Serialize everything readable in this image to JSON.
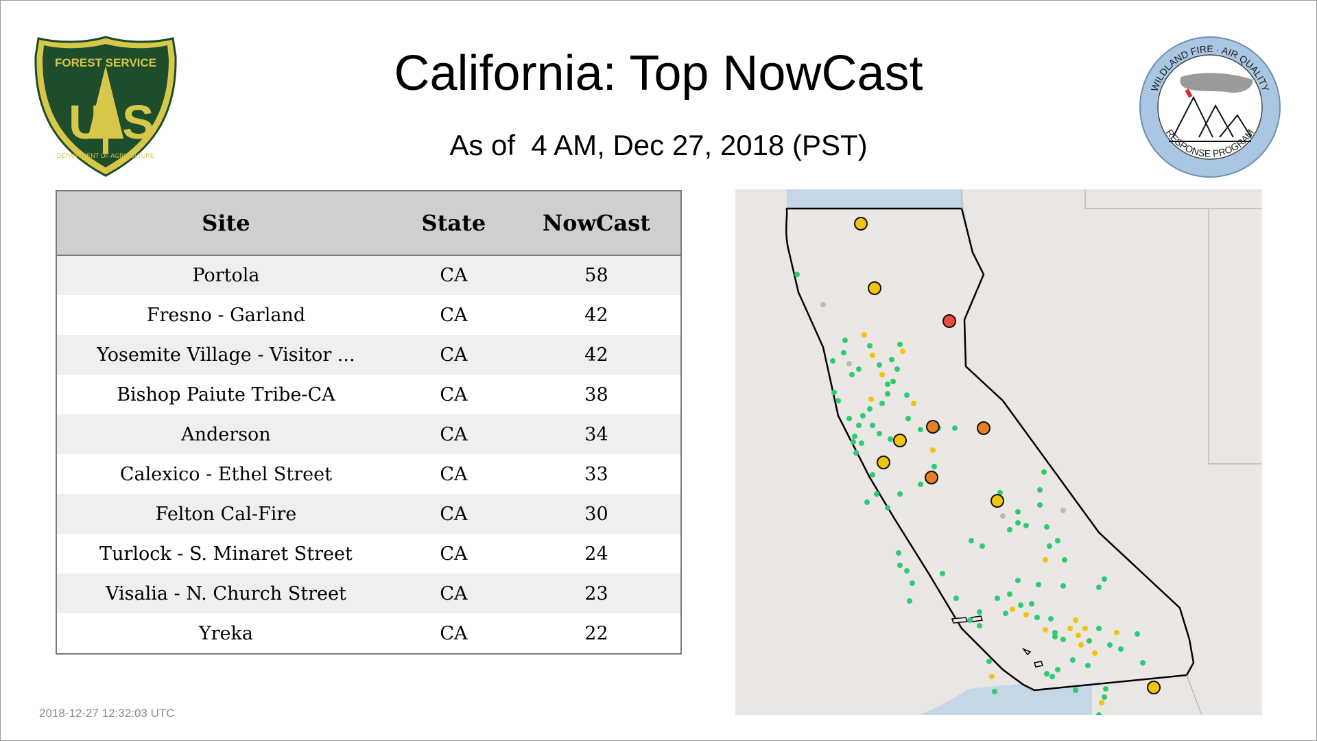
{
  "header": {
    "title": "California: Top NowCast",
    "subtitle": "As of  4 AM, Dec 27, 2018 (PST)"
  },
  "logos": {
    "usfs": {
      "top_text": "FOREST SERVICE",
      "letters": "U S",
      "bottom_text": "DEPARTMENT OF AGRICULTURE"
    },
    "wfaq": {
      "top_text": "WILDLAND FIRE · AIR QUALITY",
      "bottom_text": "RESPONSE PROGRAM"
    }
  },
  "table": {
    "headers": {
      "site": "Site",
      "state": "State",
      "nowcast": "NowCast"
    },
    "rows": [
      {
        "site": "Portola",
        "state": "CA",
        "nowcast": "58"
      },
      {
        "site": "Fresno - Garland",
        "state": "CA",
        "nowcast": "42"
      },
      {
        "site": "Yosemite Village - Visitor ...",
        "state": "CA",
        "nowcast": "42"
      },
      {
        "site": "Bishop Paiute Tribe-CA",
        "state": "CA",
        "nowcast": "38"
      },
      {
        "site": "Anderson",
        "state": "CA",
        "nowcast": "34"
      },
      {
        "site": "Calexico - Ethel Street",
        "state": "CA",
        "nowcast": "33"
      },
      {
        "site": "Felton Cal-Fire",
        "state": "CA",
        "nowcast": "30"
      },
      {
        "site": "Turlock - S. Minaret Street",
        "state": "CA",
        "nowcast": "24"
      },
      {
        "site": "Visalia - N. Church Street",
        "state": "CA",
        "nowcast": "23"
      },
      {
        "site": "Yreka",
        "state": "CA",
        "nowcast": "22"
      }
    ]
  },
  "timestamp": "2018-12-27 12:32:03 UTC",
  "map": {
    "colors": {
      "ocean": "#c5d7e6",
      "land": "#e8e4e0",
      "good": "#2ecc71",
      "moderate": "#f1c40f",
      "usg": "#e67e22",
      "unhealthy": "#e74c3c",
      "no_data": "#bbbbbb"
    }
  }
}
